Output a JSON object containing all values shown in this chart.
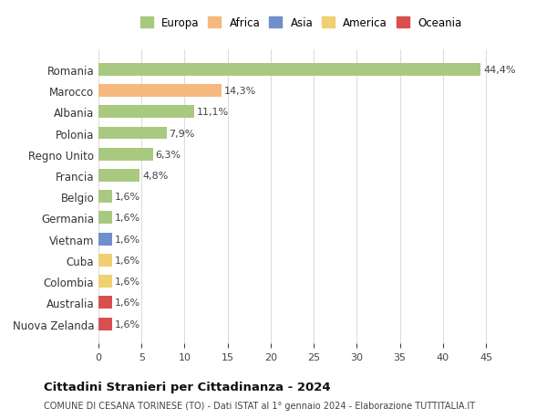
{
  "countries": [
    "Romania",
    "Marocco",
    "Albania",
    "Polonia",
    "Regno Unito",
    "Francia",
    "Belgio",
    "Germania",
    "Vietnam",
    "Cuba",
    "Colombia",
    "Australia",
    "Nuova Zelanda"
  ],
  "values": [
    44.4,
    14.3,
    11.1,
    7.9,
    6.3,
    4.8,
    1.6,
    1.6,
    1.6,
    1.6,
    1.6,
    1.6,
    1.6
  ],
  "labels": [
    "44,4%",
    "14,3%",
    "11,1%",
    "7,9%",
    "6,3%",
    "4,8%",
    "1,6%",
    "1,6%",
    "1,6%",
    "1,6%",
    "1,6%",
    "1,6%",
    "1,6%"
  ],
  "colors": [
    "#a8c97f",
    "#f5b97f",
    "#a8c97f",
    "#a8c97f",
    "#a8c97f",
    "#a8c97f",
    "#a8c97f",
    "#a8c97f",
    "#6e8fcb",
    "#f0d070",
    "#f0d070",
    "#d94f4f",
    "#d94f4f"
  ],
  "legend_labels": [
    "Europa",
    "Africa",
    "Asia",
    "America",
    "Oceania"
  ],
  "legend_colors": [
    "#a8c97f",
    "#f5b97f",
    "#6e8fcb",
    "#f0d070",
    "#d94f4f"
  ],
  "title": "Cittadini Stranieri per Cittadinanza - 2024",
  "subtitle": "COMUNE DI CESANA TORINESE (TO) - Dati ISTAT al 1° gennaio 2024 - Elaborazione TUTTITALIA.IT",
  "xlim": [
    0,
    47
  ],
  "xticks": [
    0,
    5,
    10,
    15,
    20,
    25,
    30,
    35,
    40,
    45
  ],
  "background_color": "#ffffff",
  "grid_color": "#dddddd"
}
